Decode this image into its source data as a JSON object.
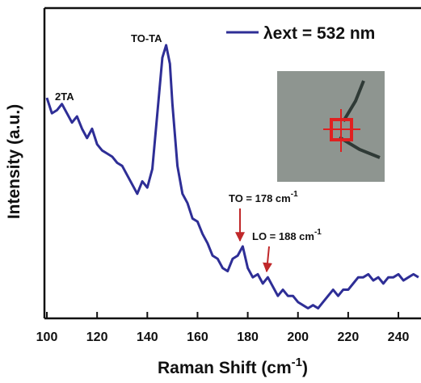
{
  "chart_data": {
    "type": "line",
    "xlabel": {
      "text": "Raman Shift (cm",
      "sup": "-1",
      "end": ")"
    },
    "ylabel": "Intensity (a.u.)",
    "x": [
      100,
      102,
      104,
      106,
      108,
      110,
      112,
      114,
      116,
      118,
      120,
      122,
      124,
      126,
      128,
      130,
      132,
      134,
      136,
      138,
      140,
      142,
      144,
      146,
      147.5,
      149,
      150,
      152,
      154,
      156,
      158,
      160,
      162,
      164,
      166,
      168,
      170,
      172,
      174,
      176,
      178,
      180,
      182,
      184,
      186,
      188,
      190,
      192,
      194,
      196,
      198,
      200,
      202,
      204,
      206,
      208,
      210,
      212,
      214,
      216,
      218,
      220,
      222,
      224,
      226,
      228,
      230,
      232,
      234,
      236,
      238,
      240,
      242,
      244,
      246,
      248
    ],
    "series": [
      {
        "name": "λext = 532 nm",
        "color": "#2e2e96",
        "values": [
          71,
          66,
          67,
          69,
          66,
          63,
          65,
          61,
          58,
          61,
          56,
          54,
          53,
          52,
          50,
          49,
          46,
          43,
          40,
          44,
          42,
          48,
          66,
          84,
          88,
          82,
          69,
          49,
          40,
          37,
          32,
          31,
          27,
          24,
          20,
          19,
          16,
          15,
          19,
          20,
          23,
          16,
          13,
          14,
          11,
          13,
          10,
          7,
          9,
          7,
          7,
          5,
          4,
          3,
          4,
          3,
          5,
          7,
          9,
          7,
          9,
          9,
          11,
          13,
          13,
          14,
          12,
          13,
          11,
          13,
          13,
          14,
          12,
          13,
          14,
          13
        ]
      }
    ],
    "xlim": [
      100,
      249
    ],
    "xticks": [
      100,
      120,
      140,
      160,
      180,
      200,
      220,
      240
    ],
    "ylim": [
      0,
      100
    ],
    "annotations": [
      {
        "text": "2TA"
      },
      {
        "text": "TO-TA"
      },
      {
        "text": "TO = 178 cm",
        "sup": "-1"
      },
      {
        "text": "LO = 188 cm",
        "sup": "-1"
      }
    ]
  }
}
